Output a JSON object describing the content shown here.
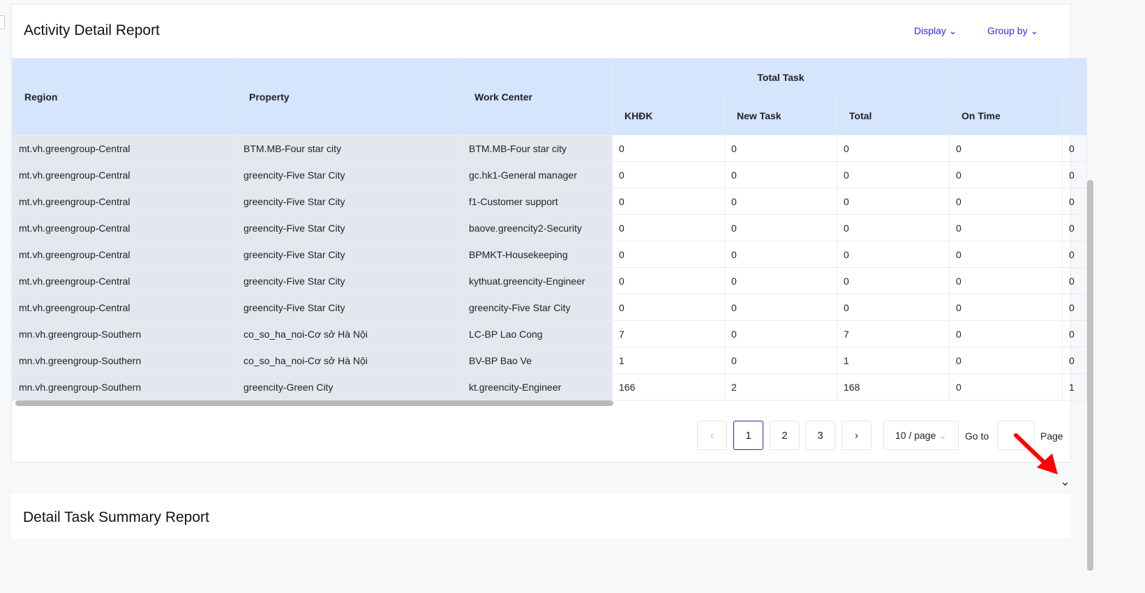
{
  "report1": {
    "title": "Activity Detail Report",
    "display_label": "Display",
    "groupby_label": "Group by"
  },
  "columns": {
    "region": "Region",
    "property": "Property",
    "work_center": "Work Center",
    "total_task": "Total Task",
    "khdk": "KHĐK",
    "new_task": "New Task",
    "total": "Total",
    "on_time": "On Time"
  },
  "rows": [
    [
      "mt.vh.greengroup-Central",
      "BTM.MB-Four star city",
      "BTM.MB-Four star city",
      "0",
      "0",
      "0",
      "0",
      "0"
    ],
    [
      "mt.vh.greengroup-Central",
      "greencity-Five Star City",
      "gc.hk1-General manager",
      "0",
      "0",
      "0",
      "0",
      "0"
    ],
    [
      "mt.vh.greengroup-Central",
      "greencity-Five Star City",
      "f1-Customer support",
      "0",
      "0",
      "0",
      "0",
      "0"
    ],
    [
      "mt.vh.greengroup-Central",
      "greencity-Five Star City",
      "baove.greencity2-Security",
      "0",
      "0",
      "0",
      "0",
      "0"
    ],
    [
      "mt.vh.greengroup-Central",
      "greencity-Five Star City",
      "BPMKT-Housekeeping",
      "0",
      "0",
      "0",
      "0",
      "0"
    ],
    [
      "mt.vh.greengroup-Central",
      "greencity-Five Star City",
      "kythuat.greencity-Engineer",
      "0",
      "0",
      "0",
      "0",
      "0"
    ],
    [
      "mt.vh.greengroup-Central",
      "greencity-Five Star City",
      "greencity-Five Star City",
      "0",
      "0",
      "0",
      "0",
      "0"
    ],
    [
      "mn.vh.greengroup-Southern",
      "co_so_ha_noi-Cơ sở Hà Nội",
      "LC-BP Lao Cong",
      "7",
      "0",
      "7",
      "0",
      "0"
    ],
    [
      "mn.vh.greengroup-Southern",
      "co_so_ha_noi-Cơ sở Hà Nội",
      "BV-BP Bao Ve",
      "1",
      "0",
      "1",
      "0",
      "0"
    ],
    [
      "mn.vh.greengroup-Southern",
      "greencity-Green City",
      "kt.greencity-Engineer",
      "166",
      "2",
      "168",
      "0",
      "1"
    ]
  ],
  "pagination": {
    "prev": "‹",
    "pages": [
      "1",
      "2",
      "3"
    ],
    "current": "1",
    "next": "›",
    "page_size": "10 / page",
    "goto_label": "Go to",
    "goto_value": "",
    "page_label": "Page"
  },
  "report2": {
    "title": "Detail Task Summary Report"
  },
  "colors": {
    "accent": "#2a2aff",
    "header_bg": "#d4e5fd",
    "annotation": "#ff0000"
  }
}
